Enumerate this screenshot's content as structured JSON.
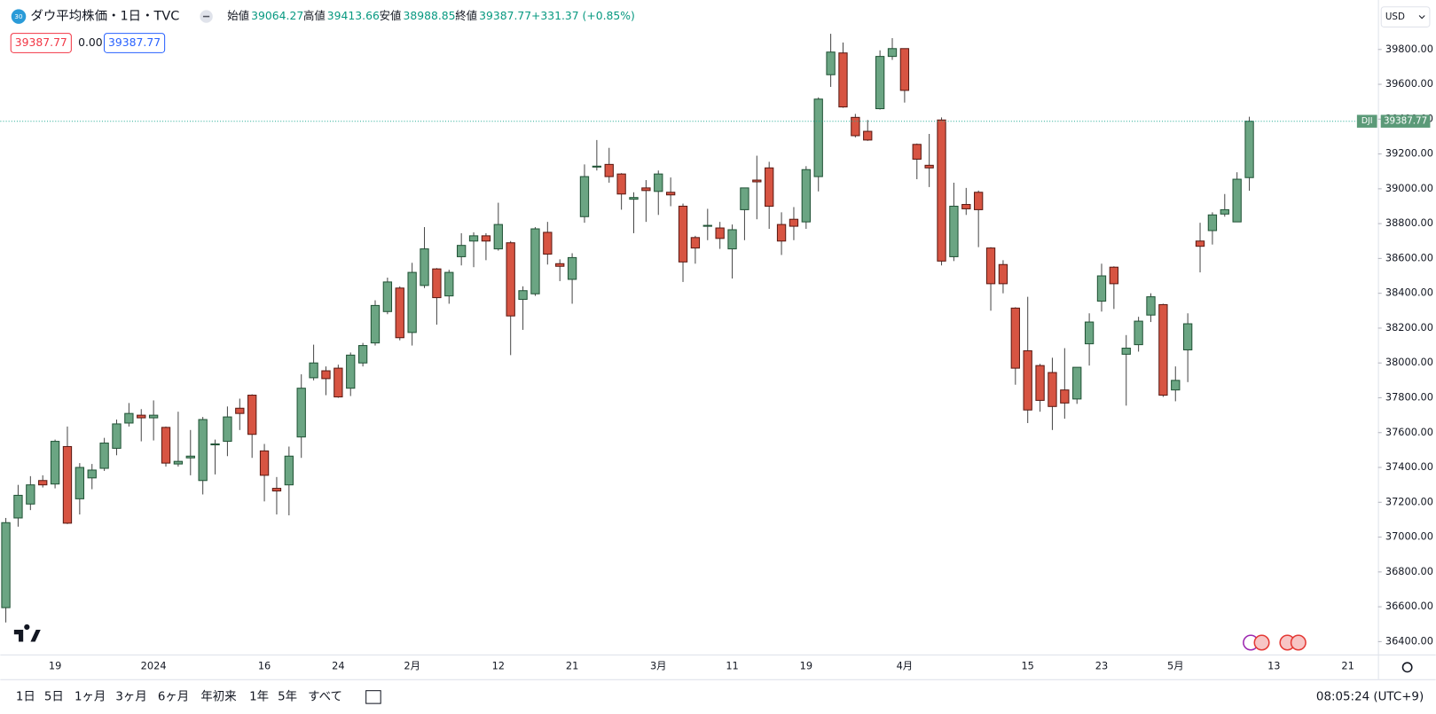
{
  "header": {
    "icon_text": "30",
    "title": "ダウ平均株価・1日・TVC",
    "open_label": "始値",
    "high_label": "高値",
    "low_label": "安値",
    "close_label": "終値",
    "change": "+331.37 (+0.85%)",
    "spread": "0.00",
    "currency": "USD",
    "symbol": "DJI"
  },
  "chart_data": {
    "type": "candlestick",
    "title": "ダウ平均株価・1日・TVC",
    "categories": [
      null,
      null,
      null,
      null,
      "19",
      null,
      null,
      null,
      null,
      null,
      null,
      null,
      "2024",
      null,
      null,
      null,
      null,
      null,
      null,
      null,
      null,
      "16",
      null,
      null,
      null,
      null,
      null,
      "24",
      null,
      null,
      null,
      null,
      null,
      "2月",
      null,
      null,
      null,
      null,
      null,
      null,
      "12",
      null,
      null,
      null,
      null,
      null,
      "21",
      null,
      null,
      null,
      null,
      null,
      null,
      "3月",
      null,
      null,
      null,
      null,
      null,
      "11",
      null,
      null,
      null,
      null,
      null,
      "19",
      null,
      null,
      null,
      null,
      null,
      null,
      null,
      "4月",
      null,
      null,
      null,
      null,
      null,
      null,
      null,
      null,
      null,
      "15",
      null,
      null,
      null,
      null,
      null,
      "23",
      null,
      null,
      null,
      null,
      null,
      "5月",
      null,
      null,
      null,
      null,
      null,
      null,
      null,
      "13",
      null,
      null,
      null,
      null,
      null,
      "21"
    ],
    "open": [
      36595,
      37110,
      37190,
      37325,
      37305,
      37520,
      37220,
      37340,
      37395,
      37510,
      37655,
      37700,
      37685,
      37630,
      37420,
      37455,
      37325,
      37530,
      37550,
      37740,
      37815,
      37495,
      37280,
      37300,
      37575,
      37915,
      37955,
      37970,
      37855,
      38000,
      38115,
      38295,
      38430,
      38175,
      38445,
      38540,
      38385,
      38610,
      38700,
      38730,
      38655,
      38690,
      38365,
      38397,
      38750,
      38570,
      38480,
      38840,
      39125,
      39140,
      39085,
      38940,
      39005,
      38985,
      38980,
      38900,
      38720,
      38785,
      38775,
      38655,
      38880,
      39050,
      39120,
      38795,
      38825,
      38810,
      39070,
      39655,
      39780,
      39410,
      39330,
      39460,
      39760,
      39805,
      39255,
      39135,
      39395,
      38610,
      38910,
      38980,
      38660,
      38565,
      38315,
      38070,
      37985,
      37945,
      37845,
      37793,
      38110,
      38355,
      38550,
      38050,
      38105,
      38275,
      38335,
      37845,
      38075,
      38700,
      38760,
      38855,
      38810,
      39064.27,
      null,
      null,
      null,
      null,
      null,
      null,
      null,
      null
    ],
    "high": [
      37110,
      37300,
      37350,
      37355,
      37560,
      37635,
      37425,
      37420,
      37570,
      37675,
      37770,
      37735,
      37785,
      37635,
      37720,
      37615,
      37690,
      37560,
      37750,
      37795,
      37820,
      37535,
      37345,
      37520,
      37935,
      38105,
      37980,
      37990,
      38060,
      38115,
      38360,
      38490,
      38440,
      38575,
      38780,
      38545,
      38535,
      38745,
      38750,
      38745,
      38920,
      38700,
      38440,
      38780,
      38810,
      38595,
      38630,
      39140,
      39280,
      39235,
      39090,
      38980,
      39050,
      39105,
      39065,
      38915,
      38730,
      38885,
      38810,
      38795,
      39005,
      39190,
      39155,
      38865,
      38895,
      39130,
      39525,
      39890,
      39840,
      39430,
      39395,
      39795,
      39865,
      39805,
      39260,
      39315,
      39410,
      39035,
      39005,
      38990,
      38665,
      38590,
      38320,
      38380,
      37995,
      38030,
      38085,
      37975,
      38285,
      38570,
      38555,
      38160,
      38265,
      38400,
      38340,
      37980,
      38285,
      38805,
      38865,
      38970,
      39095,
      39413.66,
      null,
      null,
      null,
      null,
      null,
      null,
      null,
      null
    ],
    "low": [
      36510,
      37060,
      37155,
      37285,
      37280,
      37075,
      37130,
      37275,
      37380,
      37470,
      37635,
      37550,
      37555,
      37405,
      37405,
      37355,
      37245,
      37360,
      37465,
      37615,
      37455,
      37205,
      37130,
      37125,
      37455,
      37900,
      37815,
      37800,
      37810,
      37980,
      38100,
      38280,
      38130,
      38100,
      38430,
      38220,
      38340,
      38560,
      38550,
      38590,
      38645,
      38045,
      38190,
      38385,
      38565,
      38470,
      38340,
      38805,
      39105,
      39035,
      38880,
      38745,
      38810,
      38850,
      38900,
      38465,
      38570,
      38705,
      38655,
      38485,
      38705,
      38825,
      38770,
      38620,
      38705,
      38770,
      38985,
      39585,
      39465,
      39295,
      39275,
      39455,
      39740,
      39495,
      39055,
      39010,
      38560,
      38585,
      38850,
      38665,
      38300,
      38400,
      37875,
      37655,
      37720,
      37615,
      37680,
      37765,
      37985,
      38295,
      38310,
      37755,
      38065,
      38235,
      37805,
      37780,
      37890,
      38520,
      38680,
      38840,
      38810,
      38988.85,
      null,
      null,
      null,
      null,
      null,
      null,
      null,
      null
    ],
    "close": [
      37083,
      37240,
      37300,
      37300,
      37550,
      37080,
      37400,
      37385,
      37540,
      37650,
      37710,
      37685,
      37700,
      37425,
      37435,
      37465,
      37675,
      37535,
      37690,
      37710,
      37590,
      37355,
      37265,
      37465,
      37855,
      38000,
      37910,
      37805,
      38045,
      38100,
      38330,
      38465,
      38145,
      38520,
      38655,
      38375,
      38520,
      38675,
      38730,
      38700,
      38795,
      38270,
      38415,
      38770,
      38625,
      38555,
      38605,
      39070,
      39130,
      39070,
      38970,
      38950,
      38990,
      39085,
      38965,
      38580,
      38660,
      38790,
      38715,
      38765,
      39005,
      39040,
      38900,
      38700,
      38785,
      39110,
      39515,
      39785,
      39470,
      39305,
      39280,
      39760,
      39805,
      39565,
      39170,
      39120,
      38585,
      38900,
      38885,
      38880,
      38455,
      38455,
      37970,
      37730,
      37785,
      37750,
      37770,
      37975,
      38235,
      38500,
      38455,
      38085,
      38240,
      38380,
      37815,
      37900,
      38225,
      38670,
      38850,
      38880,
      39055,
      39387.77,
      null,
      null,
      null,
      null,
      null,
      null,
      null,
      null
    ],
    "up_color": "#6ba583",
    "down_color": "#d75442",
    "ylim": [
      36326,
      40084
    ],
    "yticks": [
      {
        "value": 36400,
        "label": "36400.00"
      },
      {
        "value": 36600,
        "label": "36600.00"
      },
      {
        "value": 36800,
        "label": "36800.00"
      },
      {
        "value": 37000,
        "label": "37000.00"
      },
      {
        "value": 37200,
        "label": "37200.00"
      },
      {
        "value": 37400,
        "label": "37400.00"
      },
      {
        "value": 37600,
        "label": "37600.00"
      },
      {
        "value": 37800,
        "label": "37800.00"
      },
      {
        "value": 38000,
        "label": "38000.00"
      },
      {
        "value": 38200,
        "label": "38200.00"
      },
      {
        "value": 38400,
        "label": "38400.00"
      },
      {
        "value": 38600,
        "label": "38600.00"
      },
      {
        "value": 38800,
        "label": "38800.00"
      },
      {
        "value": 39000,
        "label": "39000.00"
      },
      {
        "value": 39200,
        "label": "39200.00"
      },
      {
        "value": 39400,
        "label": "39400.00"
      },
      {
        "value": 39600,
        "label": "39600.00"
      },
      {
        "value": 39800,
        "label": "39800.00"
      }
    ],
    "grid": false
  },
  "toolbar": {
    "ranges": [
      "1日",
      "5日",
      "1ヶ月",
      "3ヶ月",
      "6ヶ月",
      "年初来",
      "1年",
      "5年",
      "すべて"
    ],
    "time": "08:05:24 (UTC+9)"
  }
}
